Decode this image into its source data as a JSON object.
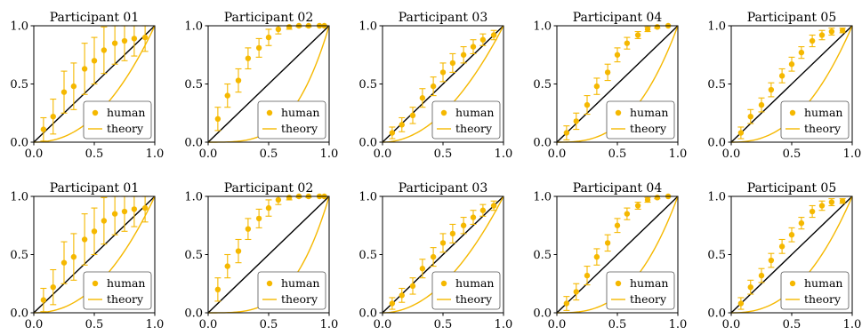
{
  "figure": {
    "rows": 2,
    "cols": 5
  },
  "colors": {
    "human": "#f5b800",
    "theory": "#f5b800",
    "diagonal": "#000000",
    "axes": "#000000"
  },
  "chart_data": [
    {
      "type": "scatter",
      "title": "Participant 01",
      "xlim": [
        0,
        1
      ],
      "ylim": [
        0,
        1
      ],
      "xticks": [
        "0.0",
        "0.5",
        "1.0"
      ],
      "yticks": [
        "0.0",
        "0.5",
        "1.0"
      ],
      "legend": {
        "position": "bottom-right",
        "entries": [
          "human",
          "theory"
        ]
      },
      "series": [
        {
          "name": "human",
          "kind": "points-with-errorbars",
          "x": [
            0.08,
            0.16,
            0.25,
            0.33,
            0.42,
            0.5,
            0.58,
            0.67,
            0.75,
            0.83,
            0.92
          ],
          "y": [
            0.11,
            0.22,
            0.43,
            0.48,
            0.63,
            0.7,
            0.79,
            0.85,
            0.87,
            0.89,
            0.9
          ],
          "err": [
            0.1,
            0.15,
            0.18,
            0.2,
            0.22,
            0.2,
            0.2,
            0.18,
            0.17,
            0.15,
            0.12
          ]
        },
        {
          "name": "theory",
          "kind": "line",
          "power": 2.2
        }
      ]
    },
    {
      "type": "scatter",
      "title": "Participant 02",
      "xlim": [
        0,
        1
      ],
      "ylim": [
        0,
        1
      ],
      "xticks": [
        "0.0",
        "0.5",
        "1.0"
      ],
      "yticks": [
        "0.0",
        "0.5",
        "1.0"
      ],
      "legend": {
        "position": "bottom-right",
        "entries": [
          "human",
          "theory"
        ]
      },
      "series": [
        {
          "name": "human",
          "kind": "points-with-errorbars",
          "x": [
            0.08,
            0.16,
            0.25,
            0.33,
            0.42,
            0.5,
            0.58,
            0.67,
            0.75,
            0.83,
            0.92,
            0.96
          ],
          "y": [
            0.2,
            0.4,
            0.53,
            0.72,
            0.81,
            0.9,
            0.97,
            0.99,
            1.0,
            1.0,
            1.0,
            1.0
          ],
          "err": [
            0.1,
            0.1,
            0.1,
            0.09,
            0.08,
            0.07,
            0.04,
            0.02,
            0.01,
            0.01,
            0.0,
            0.0
          ]
        },
        {
          "name": "theory",
          "kind": "line",
          "power": 3.5
        }
      ]
    },
    {
      "type": "scatter",
      "title": "Participant 03",
      "xlim": [
        0,
        1
      ],
      "ylim": [
        0,
        1
      ],
      "xticks": [
        "0.0",
        "0.5",
        "1.0"
      ],
      "yticks": [
        "0.0",
        "0.5",
        "1.0"
      ],
      "legend": {
        "position": "bottom-right",
        "entries": [
          "human",
          "theory"
        ]
      },
      "series": [
        {
          "name": "human",
          "kind": "points-with-errorbars",
          "x": [
            0.08,
            0.16,
            0.25,
            0.33,
            0.42,
            0.5,
            0.58,
            0.67,
            0.75,
            0.83,
            0.92
          ],
          "y": [
            0.08,
            0.15,
            0.23,
            0.38,
            0.48,
            0.6,
            0.68,
            0.75,
            0.82,
            0.88,
            0.92
          ],
          "err": [
            0.05,
            0.06,
            0.07,
            0.08,
            0.08,
            0.08,
            0.08,
            0.07,
            0.06,
            0.05,
            0.04
          ]
        },
        {
          "name": "theory",
          "kind": "line",
          "power": 2.0
        }
      ]
    },
    {
      "type": "scatter",
      "title": "Participant 04",
      "xlim": [
        0,
        1
      ],
      "ylim": [
        0,
        1
      ],
      "xticks": [
        "0.0",
        "0.5",
        "1.0"
      ],
      "yticks": [
        "0.0",
        "0.5",
        "1.0"
      ],
      "legend": {
        "position": "bottom-right",
        "entries": [
          "human",
          "theory"
        ]
      },
      "series": [
        {
          "name": "human",
          "kind": "points-with-errorbars",
          "x": [
            0.08,
            0.16,
            0.25,
            0.33,
            0.42,
            0.5,
            0.58,
            0.67,
            0.75,
            0.83,
            0.92
          ],
          "y": [
            0.08,
            0.18,
            0.32,
            0.48,
            0.6,
            0.75,
            0.85,
            0.92,
            0.97,
            0.99,
            1.0
          ],
          "err": [
            0.06,
            0.07,
            0.08,
            0.07,
            0.07,
            0.06,
            0.05,
            0.03,
            0.02,
            0.01,
            0.0
          ]
        },
        {
          "name": "theory",
          "kind": "line",
          "power": 2.8
        }
      ]
    },
    {
      "type": "scatter",
      "title": "Participant 05",
      "xlim": [
        0,
        1
      ],
      "ylim": [
        0,
        1
      ],
      "xticks": [
        "0.0",
        "0.5",
        "1.0"
      ],
      "yticks": [
        "0.0",
        "0.5",
        "1.0"
      ],
      "legend": {
        "position": "bottom-right",
        "entries": [
          "human",
          "theory"
        ]
      },
      "series": [
        {
          "name": "human",
          "kind": "points-with-errorbars",
          "x": [
            0.08,
            0.16,
            0.25,
            0.33,
            0.42,
            0.5,
            0.58,
            0.67,
            0.75,
            0.83,
            0.92
          ],
          "y": [
            0.08,
            0.22,
            0.32,
            0.45,
            0.57,
            0.67,
            0.77,
            0.87,
            0.92,
            0.95,
            0.96
          ],
          "err": [
            0.05,
            0.06,
            0.06,
            0.06,
            0.06,
            0.06,
            0.05,
            0.05,
            0.04,
            0.03,
            0.02
          ]
        },
        {
          "name": "theory",
          "kind": "line",
          "power": 2.4
        }
      ]
    },
    {
      "type": "scatter",
      "title": "Participant 01",
      "xlim": [
        0,
        1
      ],
      "ylim": [
        0,
        1
      ],
      "xticks": [
        "0.0",
        "0.5",
        "1.0"
      ],
      "yticks": [
        "0.0",
        "0.5",
        "1.0"
      ],
      "legend": {
        "position": "bottom-right",
        "entries": [
          "human",
          "theory"
        ]
      },
      "series": [
        {
          "name": "human",
          "kind": "points-with-errorbars",
          "x": [
            0.08,
            0.16,
            0.25,
            0.33,
            0.42,
            0.5,
            0.58,
            0.67,
            0.75,
            0.83,
            0.92
          ],
          "y": [
            0.11,
            0.22,
            0.43,
            0.48,
            0.63,
            0.7,
            0.79,
            0.85,
            0.87,
            0.89,
            0.9
          ],
          "err": [
            0.1,
            0.15,
            0.18,
            0.2,
            0.22,
            0.2,
            0.2,
            0.18,
            0.17,
            0.15,
            0.12
          ]
        },
        {
          "name": "theory",
          "kind": "line",
          "power": 2.2
        }
      ]
    },
    {
      "type": "scatter",
      "title": "Participant 02",
      "xlim": [
        0,
        1
      ],
      "ylim": [
        0,
        1
      ],
      "xticks": [
        "0.0",
        "0.5",
        "1.0"
      ],
      "yticks": [
        "0.0",
        "0.5",
        "1.0"
      ],
      "legend": {
        "position": "bottom-right",
        "entries": [
          "human",
          "theory"
        ]
      },
      "series": [
        {
          "name": "human",
          "kind": "points-with-errorbars",
          "x": [
            0.08,
            0.16,
            0.25,
            0.33,
            0.42,
            0.5,
            0.58,
            0.67,
            0.75,
            0.83,
            0.92,
            0.96
          ],
          "y": [
            0.2,
            0.4,
            0.53,
            0.72,
            0.81,
            0.9,
            0.97,
            0.99,
            1.0,
            1.0,
            1.0,
            1.0
          ],
          "err": [
            0.1,
            0.1,
            0.1,
            0.09,
            0.08,
            0.07,
            0.04,
            0.02,
            0.01,
            0.01,
            0.0,
            0.0
          ]
        },
        {
          "name": "theory",
          "kind": "line",
          "power": 3.5
        }
      ]
    },
    {
      "type": "scatter",
      "title": "Participant 03",
      "xlim": [
        0,
        1
      ],
      "ylim": [
        0,
        1
      ],
      "xticks": [
        "0.0",
        "0.5",
        "1.0"
      ],
      "yticks": [
        "0.0",
        "0.5",
        "1.0"
      ],
      "legend": {
        "position": "bottom-right",
        "entries": [
          "human",
          "theory"
        ]
      },
      "series": [
        {
          "name": "human",
          "kind": "points-with-errorbars",
          "x": [
            0.08,
            0.16,
            0.25,
            0.33,
            0.42,
            0.5,
            0.58,
            0.67,
            0.75,
            0.83,
            0.92
          ],
          "y": [
            0.08,
            0.15,
            0.23,
            0.38,
            0.48,
            0.6,
            0.68,
            0.75,
            0.82,
            0.88,
            0.92
          ],
          "err": [
            0.05,
            0.06,
            0.07,
            0.08,
            0.08,
            0.08,
            0.08,
            0.07,
            0.06,
            0.05,
            0.04
          ]
        },
        {
          "name": "theory",
          "kind": "line",
          "power": 2.0
        }
      ]
    },
    {
      "type": "scatter",
      "title": "Participant 04",
      "xlim": [
        0,
        1
      ],
      "ylim": [
        0,
        1
      ],
      "xticks": [
        "0.0",
        "0.5",
        "1.0"
      ],
      "yticks": [
        "0.0",
        "0.5",
        "1.0"
      ],
      "legend": {
        "position": "bottom-right",
        "entries": [
          "human",
          "theory"
        ]
      },
      "series": [
        {
          "name": "human",
          "kind": "points-with-errorbars",
          "x": [
            0.08,
            0.16,
            0.25,
            0.33,
            0.42,
            0.5,
            0.58,
            0.67,
            0.75,
            0.83,
            0.92
          ],
          "y": [
            0.08,
            0.18,
            0.32,
            0.48,
            0.6,
            0.75,
            0.85,
            0.92,
            0.97,
            0.99,
            1.0
          ],
          "err": [
            0.06,
            0.07,
            0.08,
            0.07,
            0.07,
            0.06,
            0.05,
            0.03,
            0.02,
            0.01,
            0.0
          ]
        },
        {
          "name": "theory",
          "kind": "line",
          "power": 2.8
        }
      ]
    },
    {
      "type": "scatter",
      "title": "Participant 05",
      "xlim": [
        0,
        1
      ],
      "ylim": [
        0,
        1
      ],
      "xticks": [
        "0.0",
        "0.5",
        "1.0"
      ],
      "yticks": [
        "0.0",
        "0.5",
        "1.0"
      ],
      "legend": {
        "position": "bottom-right",
        "entries": [
          "human",
          "theory"
        ]
      },
      "series": [
        {
          "name": "human",
          "kind": "points-with-errorbars",
          "x": [
            0.08,
            0.16,
            0.25,
            0.33,
            0.42,
            0.5,
            0.58,
            0.67,
            0.75,
            0.83,
            0.92
          ],
          "y": [
            0.08,
            0.22,
            0.32,
            0.45,
            0.57,
            0.67,
            0.77,
            0.87,
            0.92,
            0.95,
            0.96
          ],
          "err": [
            0.05,
            0.06,
            0.06,
            0.06,
            0.06,
            0.06,
            0.05,
            0.05,
            0.04,
            0.03,
            0.02
          ]
        },
        {
          "name": "theory",
          "kind": "line",
          "power": 2.4
        }
      ]
    }
  ]
}
